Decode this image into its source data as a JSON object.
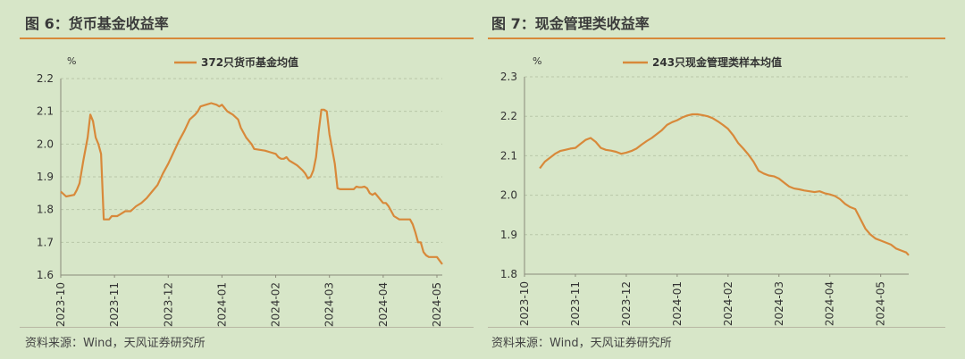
{
  "colors": {
    "line": "#d8893a",
    "grid": "#b8c7a8",
    "axis": "#8a8a7a",
    "background": "#d7e6c8"
  },
  "left": {
    "title": "图 6：货币基金收益率",
    "source": "资料来源：Wind，天风证券研究所"
  },
  "right": {
    "title": "图 7：现金管理类收益率",
    "source": "资料来源：Wind，天风证券研究所"
  },
  "chart_data": [
    {
      "type": "line",
      "title": "图 6：货币基金收益率",
      "ylabel": "%",
      "ylim": [
        1.6,
        2.2
      ],
      "yticks": [
        "1.6",
        "1.7",
        "1.8",
        "1.9",
        "2.0",
        "2.1",
        "2.2"
      ],
      "xlim": [
        0,
        7.1
      ],
      "xticks": [
        "2023-10",
        "2023-11",
        "2023-12",
        "2024-01",
        "2024-02",
        "2024-03",
        "2024-04",
        "2024-05"
      ],
      "series": [
        {
          "name": "372只货币基金均值",
          "x": [
            0,
            0.1,
            0.25,
            0.3,
            0.35,
            0.42,
            0.5,
            0.55,
            0.6,
            0.65,
            0.7,
            0.75,
            0.8,
            0.85,
            0.9,
            0.95,
            1.0,
            1.05,
            1.1,
            1.15,
            1.2,
            1.3,
            1.4,
            1.5,
            1.6,
            1.7,
            1.8,
            1.9,
            2.0,
            2.1,
            2.2,
            2.3,
            2.4,
            2.5,
            2.55,
            2.6,
            2.7,
            2.8,
            2.9,
            2.95,
            3.0,
            3.05,
            3.1,
            3.15,
            3.2,
            3.3,
            3.35,
            3.45,
            3.5,
            3.55,
            3.6,
            3.8,
            3.9,
            4.0,
            4.05,
            4.1,
            4.15,
            4.2,
            4.25,
            4.3,
            4.35,
            4.4,
            4.5,
            4.55,
            4.6,
            4.65,
            4.7,
            4.75,
            4.8,
            4.85,
            4.9,
            4.95,
            5.0,
            5.05,
            5.1,
            5.15,
            5.2,
            5.3,
            5.45,
            5.5,
            5.55,
            5.6,
            5.65,
            5.7,
            5.75,
            5.8,
            5.85,
            5.9,
            6.0,
            6.05,
            6.1,
            6.2,
            6.3,
            6.5,
            6.55,
            6.6,
            6.65,
            6.7,
            6.75,
            6.8,
            6.85,
            7.0,
            7.1
          ],
          "values": [
            1.855,
            1.84,
            1.845,
            1.86,
            1.88,
            1.95,
            2.02,
            2.09,
            2.07,
            2.02,
            2.0,
            1.97,
            1.77,
            1.77,
            1.77,
            1.78,
            1.78,
            1.78,
            1.785,
            1.79,
            1.795,
            1.795,
            1.81,
            1.82,
            1.835,
            1.855,
            1.875,
            1.91,
            1.94,
            1.975,
            2.01,
            2.04,
            2.075,
            2.09,
            2.1,
            2.115,
            2.12,
            2.125,
            2.12,
            2.115,
            2.12,
            2.11,
            2.1,
            2.095,
            2.09,
            2.075,
            2.05,
            2.02,
            2.01,
            2.0,
            1.985,
            1.98,
            1.975,
            1.97,
            1.96,
            1.955,
            1.955,
            1.96,
            1.95,
            1.945,
            1.94,
            1.935,
            1.92,
            1.91,
            1.895,
            1.9,
            1.92,
            1.96,
            2.04,
            2.105,
            2.105,
            2.1,
            2.03,
            1.985,
            1.94,
            1.865,
            1.862,
            1.862,
            1.862,
            1.87,
            1.868,
            1.868,
            1.87,
            1.865,
            1.85,
            1.845,
            1.85,
            1.84,
            1.82,
            1.82,
            1.81,
            1.78,
            1.77,
            1.77,
            1.755,
            1.73,
            1.7,
            1.7,
            1.67,
            1.66,
            1.655,
            1.655,
            1.633
          ]
        }
      ]
    },
    {
      "type": "line",
      "title": "图 7：现金管理类收益率",
      "ylabel": "%",
      "ylim": [
        1.8,
        2.3
      ],
      "yticks": [
        "1.8",
        "1.9",
        "2.0",
        "2.1",
        "2.2",
        "2.3"
      ],
      "xlim": [
        0,
        7.55
      ],
      "xticks": [
        "2023-10",
        "2023-11",
        "2023-12",
        "2024-01",
        "2024-02",
        "2024-03",
        "2024-04",
        "2024-05"
      ],
      "series": [
        {
          "name": "243只现金管理类样本均值",
          "x": [
            0.3,
            0.4,
            0.5,
            0.6,
            0.7,
            0.8,
            0.9,
            1.0,
            1.1,
            1.2,
            1.3,
            1.4,
            1.5,
            1.6,
            1.7,
            1.8,
            1.9,
            2.0,
            2.1,
            2.2,
            2.3,
            2.4,
            2.5,
            2.6,
            2.7,
            2.8,
            2.9,
            3.0,
            3.1,
            3.2,
            3.3,
            3.4,
            3.5,
            3.6,
            3.7,
            3.8,
            3.9,
            4.0,
            4.1,
            4.2,
            4.3,
            4.4,
            4.5,
            4.6,
            4.7,
            4.8,
            4.9,
            5.0,
            5.1,
            5.2,
            5.3,
            5.4,
            5.5,
            5.6,
            5.7,
            5.8,
            5.9,
            6.0,
            6.1,
            6.2,
            6.3,
            6.4,
            6.5,
            6.6,
            6.7,
            6.8,
            6.9,
            7.0,
            7.1,
            7.2,
            7.3,
            7.4,
            7.5,
            7.55
          ],
          "values": [
            2.068,
            2.085,
            2.095,
            2.105,
            2.112,
            2.115,
            2.118,
            2.12,
            2.13,
            2.14,
            2.145,
            2.135,
            2.12,
            2.115,
            2.113,
            2.11,
            2.105,
            2.108,
            2.112,
            2.118,
            2.128,
            2.137,
            2.145,
            2.155,
            2.165,
            2.178,
            2.185,
            2.19,
            2.197,
            2.202,
            2.205,
            2.205,
            2.203,
            2.2,
            2.195,
            2.187,
            2.178,
            2.168,
            2.152,
            2.132,
            2.118,
            2.103,
            2.085,
            2.062,
            2.055,
            2.05,
            2.048,
            2.042,
            2.032,
            2.022,
            2.017,
            2.015,
            2.012,
            2.01,
            2.008,
            2.01,
            2.005,
            2.002,
            1.998,
            1.99,
            1.978,
            1.97,
            1.965,
            1.94,
            1.915,
            1.9,
            1.89,
            1.885,
            1.88,
            1.875,
            1.865,
            1.86,
            1.855,
            1.848
          ]
        }
      ]
    }
  ]
}
